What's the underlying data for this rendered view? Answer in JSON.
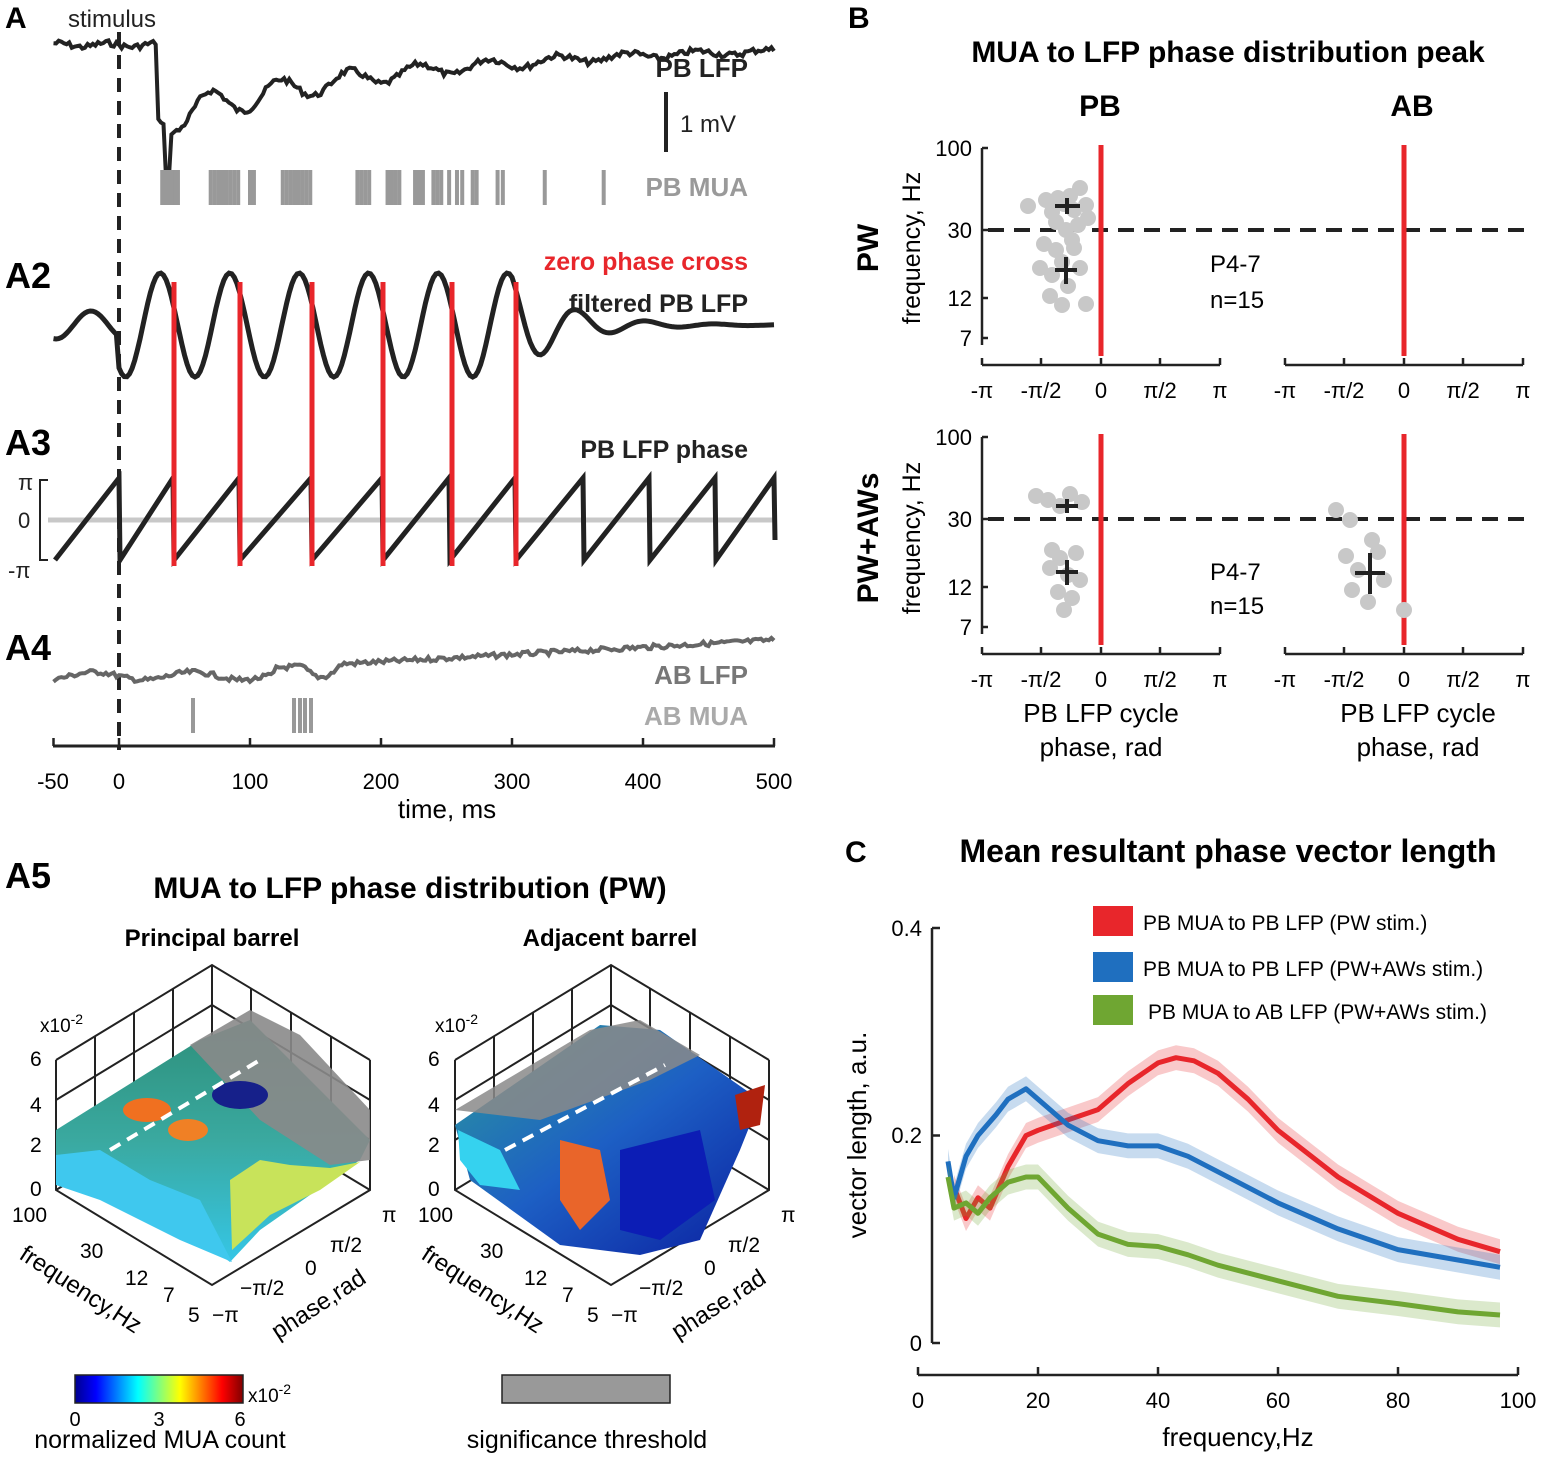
{
  "colors": {
    "red": "#e8262b",
    "blue": "#1f6fbf",
    "green": "#6fa632",
    "dark": "#222222",
    "grey": "#8c8c8c",
    "lightgrey": "#c8c8c8"
  },
  "panelA": {
    "label": "A",
    "stimulus": "stimulus",
    "pb_lfp": "PB LFP",
    "scale": "1 mV",
    "pb_mua": "PB MUA",
    "a2_label": "A2",
    "zero_phase_cross": "zero phase cross",
    "filtered": "filtered PB LFP",
    "a3_label": "A3",
    "phase_label": "PB LFP phase",
    "pi_top": "π",
    "zero": "0",
    "pi_bottom": "-π",
    "a4_label": "A4",
    "ab_lfp": "AB LFP",
    "ab_mua": "AB MUA",
    "xlabel": "time, ms",
    "xticks": [
      "-50",
      "0",
      "100",
      "200",
      "300",
      "400",
      "500"
    ]
  },
  "panelA5": {
    "label": "A5",
    "title": "MUA to LFP phase distribution (PW)",
    "left_title": "Principal barrel",
    "right_title": "Adjacent barrel",
    "zexp": "x10",
    "zexp_sup": "-2",
    "zticks": [
      "6",
      "4",
      "2",
      "0"
    ],
    "freq_ticks": [
      "100",
      "30",
      "12",
      "7",
      "5"
    ],
    "phase_ticks": [
      "π",
      "π/2",
      "0",
      "−π/2",
      "−π"
    ],
    "freq_label": "frequency,Hz",
    "phase_label": "phase,rad",
    "colorbar_ticks": [
      "0",
      "3",
      "6"
    ],
    "colorbar_exp": "x10",
    "colorbar_exp_sup": "-2",
    "colorbar_label": "normalized MUA count",
    "threshold_label": "significance threshold"
  },
  "panelB": {
    "label": "B",
    "title": "MUA to LFP phase distribution peak",
    "col_pb": "PB",
    "col_ab": "AB",
    "row_pw": "PW",
    "row_pwaw": "PW+AWs",
    "ylabel": "frequency, Hz",
    "yticks": [
      "100",
      "30",
      "12",
      "7"
    ],
    "xticks": [
      "-π",
      "-π/2",
      "0",
      "π/2",
      "π"
    ],
    "age": "P4-7",
    "n": "n=15",
    "xlabel_line1": "PB LFP cycle",
    "xlabel_line2": "phase, rad"
  },
  "panelC": {
    "label": "C",
    "chart_data": {
      "type": "line",
      "title": "Mean resultant phase vector length",
      "xlabel": "frequency,Hz",
      "ylabel": "vector length, a.u.",
      "xlim": [
        0,
        100
      ],
      "ylim": [
        0,
        0.4
      ],
      "xticks": [
        "0",
        "20",
        "40",
        "60",
        "80",
        "100"
      ],
      "yticks": [
        "0",
        "0.2",
        "0.4"
      ],
      "legend_position": "top-right",
      "series": [
        {
          "name": "PB MUA to PB LFP (PW stim.)",
          "color": "#e8262b",
          "x": [
            6,
            8,
            10,
            12,
            15,
            18,
            20,
            25,
            30,
            35,
            40,
            43,
            46,
            50,
            55,
            60,
            70,
            80,
            90,
            97
          ],
          "y": [
            0.15,
            0.12,
            0.14,
            0.13,
            0.17,
            0.2,
            0.205,
            0.215,
            0.225,
            0.25,
            0.27,
            0.275,
            0.272,
            0.26,
            0.235,
            0.205,
            0.16,
            0.125,
            0.1,
            0.088
          ]
        },
        {
          "name": "PB MUA to PB LFP (PW+AWs stim.)",
          "color": "#1f6fbf",
          "x": [
            5,
            6,
            8,
            10,
            13,
            15,
            18,
            20,
            25,
            30,
            35,
            40,
            45,
            50,
            60,
            70,
            80,
            90,
            97
          ],
          "y": [
            0.175,
            0.14,
            0.18,
            0.2,
            0.22,
            0.235,
            0.245,
            0.235,
            0.21,
            0.195,
            0.19,
            0.19,
            0.18,
            0.165,
            0.135,
            0.11,
            0.09,
            0.08,
            0.073
          ]
        },
        {
          "name": "PB MUA to AB LFP (PW+AWs stim.)",
          "color": "#6fa632",
          "x": [
            5,
            6,
            8,
            10,
            12,
            15,
            18,
            20,
            25,
            30,
            35,
            40,
            45,
            50,
            60,
            70,
            80,
            90,
            97
          ],
          "y": [
            0.16,
            0.13,
            0.135,
            0.125,
            0.14,
            0.155,
            0.16,
            0.16,
            0.13,
            0.105,
            0.095,
            0.093,
            0.085,
            0.075,
            0.06,
            0.045,
            0.038,
            0.03,
            0.027
          ]
        }
      ]
    }
  }
}
